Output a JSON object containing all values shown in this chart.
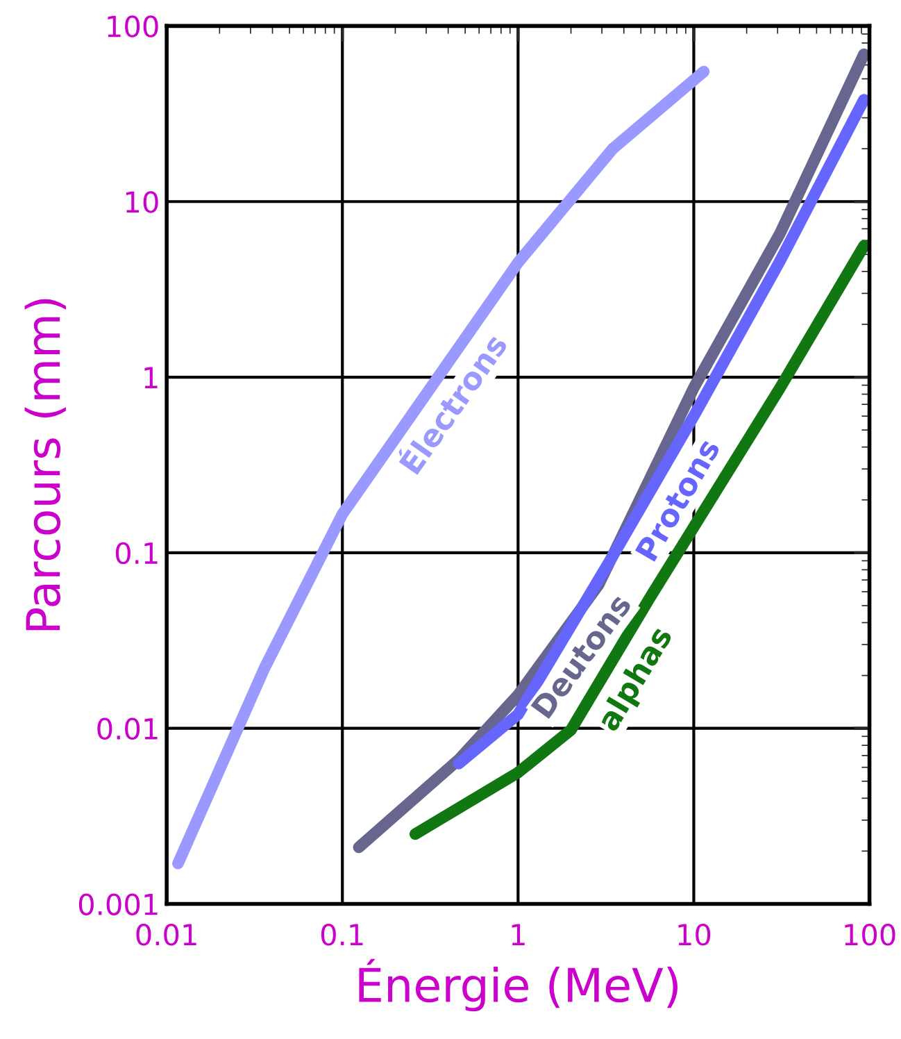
{
  "chart_data": {
    "type": "line",
    "xlabel": "Énergie (MeV)",
    "ylabel": "Parcours (mm)",
    "log": "xy",
    "grid": true,
    "marker": "none",
    "line_style": "solid",
    "xlim": [
      0.01,
      100
    ],
    "ylim": [
      0.001,
      100
    ],
    "xticks": [
      0.01,
      0.1,
      1,
      10,
      100
    ],
    "yticks": [
      0.001,
      0.01,
      0.1,
      1,
      10,
      100
    ],
    "series": [
      {
        "name": "Électrons",
        "color": "#9999ff",
        "x": [
          0.0116,
          0.036,
          0.1,
          1,
          3.46,
          11.4
        ],
        "values": [
          0.0017,
          0.022,
          0.166,
          4.5,
          20,
          55
        ]
      },
      {
        "name": "Deutons",
        "color": "#66668f",
        "x": [
          0.124,
          0.464,
          1,
          2.88,
          10,
          31,
          93
        ],
        "values": [
          0.0021,
          0.0067,
          0.0155,
          0.066,
          0.87,
          6.6,
          69
        ]
      },
      {
        "name": "Protons",
        "color": "#6666ff",
        "x": [
          0.46,
          1,
          3.46,
          10,
          31,
          93
        ],
        "values": [
          0.0063,
          0.012,
          0.096,
          0.6,
          4.6,
          38
        ]
      },
      {
        "name": "alphas",
        "color": "#117711",
        "x": [
          0.26,
          1,
          2.0,
          5.6,
          10,
          31,
          93
        ],
        "values": [
          0.0025,
          0.0056,
          0.0098,
          0.055,
          0.14,
          0.87,
          5.6
        ]
      }
    ]
  }
}
